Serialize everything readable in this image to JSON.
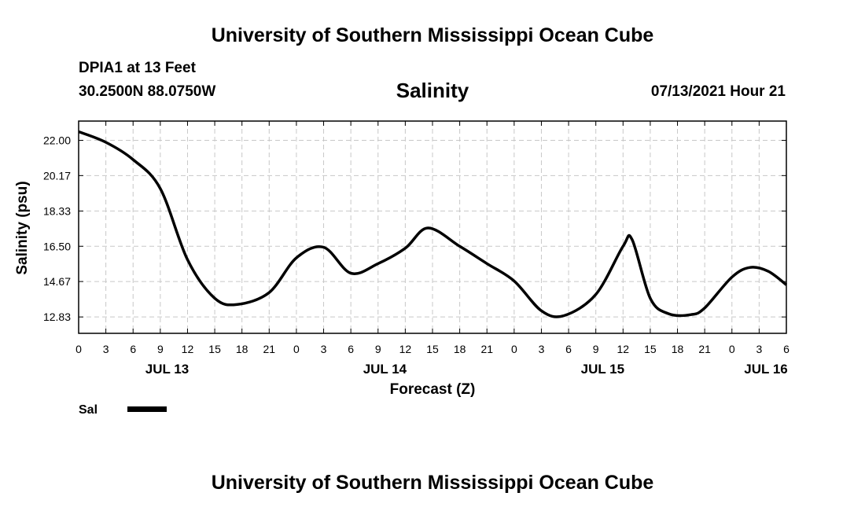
{
  "header": {
    "title": "University of Southern Mississippi Ocean Cube",
    "station": "DPIA1 at 13 Feet",
    "coords": "30.2500N  88.0750W",
    "datetime": "07/13/2021 Hour 21"
  },
  "footer": {
    "title": "University of Southern Mississippi Ocean Cube"
  },
  "colors": {
    "line": "#000000",
    "grid": "#c8c8c8",
    "frame": "#000000"
  },
  "chart_data": {
    "type": "line",
    "title": "Salinity",
    "xlabel": "Forecast (Z)",
    "ylabel": "Salinity (psu)",
    "xlim": [
      0,
      78
    ],
    "ylim": [
      11.98,
      23.0
    ],
    "grid": true,
    "y_ticks": [
      "22.00",
      "20.17",
      "18.33",
      "16.50",
      "14.67",
      "12.83"
    ],
    "y_tick_values": [
      22.0,
      20.17,
      18.33,
      16.5,
      14.67,
      12.83
    ],
    "x_tick_labels": [
      "0",
      "3",
      "6",
      "9",
      "12",
      "15",
      "18",
      "21",
      "0",
      "3",
      "6",
      "9",
      "12",
      "15",
      "18",
      "21",
      "0",
      "3",
      "6",
      "9",
      "12",
      "15",
      "18",
      "21",
      "0",
      "3",
      "6"
    ],
    "day_labels": [
      {
        "label": "JUL 13",
        "hour": 9.75
      },
      {
        "label": "JUL 14",
        "hour": 33.75
      },
      {
        "label": "JUL 15",
        "hour": 57.75
      },
      {
        "label": "JUL 16",
        "hour": 75.75
      }
    ],
    "legend": {
      "position": "bottom-left",
      "label": "Sal"
    },
    "series": [
      {
        "name": "Sal",
        "x": [
          0,
          3,
          6,
          9,
          12,
          15,
          17.5,
          21,
          24,
          27,
          30,
          33,
          36,
          38.5,
          42,
          45,
          48,
          51,
          53.5,
          57,
          60,
          61,
          63,
          65,
          67.5,
          69,
          72,
          74,
          76,
          78
        ],
        "y": [
          22.45,
          21.9,
          21.0,
          19.5,
          15.8,
          13.8,
          13.48,
          14.1,
          15.9,
          16.45,
          15.1,
          15.6,
          16.4,
          17.45,
          16.5,
          15.6,
          14.7,
          13.15,
          12.9,
          14.0,
          16.5,
          16.85,
          13.8,
          13.0,
          12.95,
          13.3,
          14.9,
          15.4,
          15.2,
          14.5
        ]
      }
    ]
  }
}
